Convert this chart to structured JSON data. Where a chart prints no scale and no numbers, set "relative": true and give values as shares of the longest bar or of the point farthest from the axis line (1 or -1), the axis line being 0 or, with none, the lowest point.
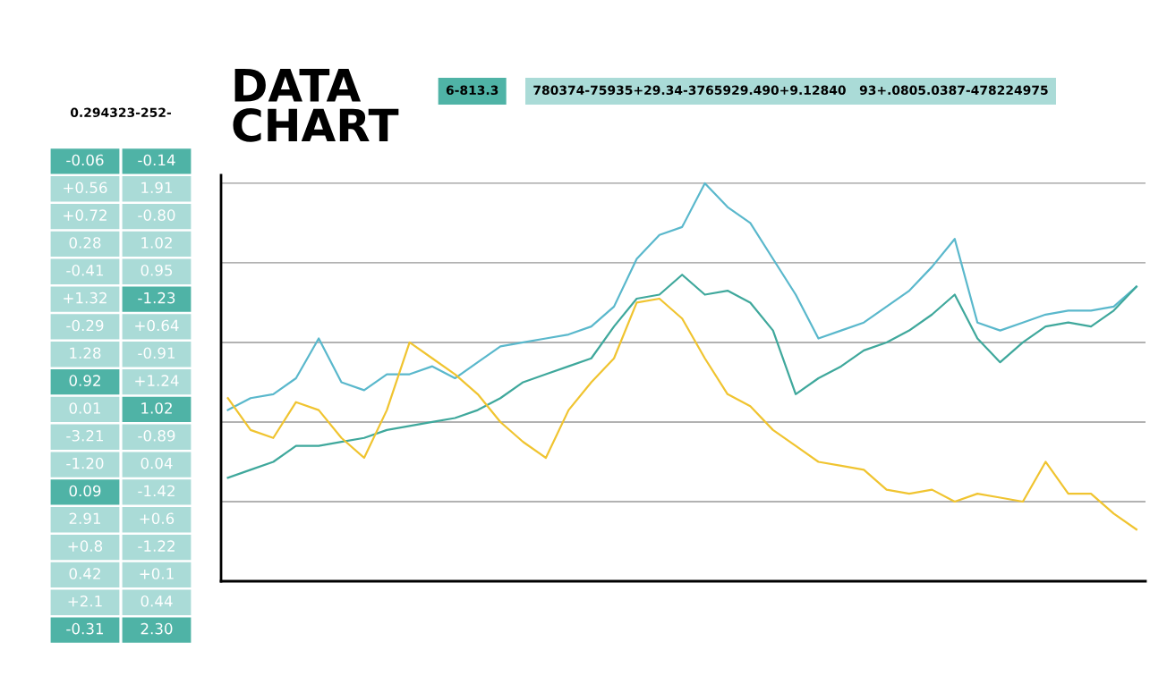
{
  "chart_data": [
    {
      "type": "other",
      "title": "0.294323-252-",
      "annotations": [
        "-0.06",
        "-0.14",
        "+0.56",
        "1.91",
        "+0.72",
        "-0.80",
        "0.28",
        "1.02",
        "-0.41",
        "0.95",
        "+1.32",
        "-1.23",
        "-0.29",
        "+0.64",
        "1.28",
        "-0.91",
        "0.92",
        "+1.24",
        "0.01",
        "1.02",
        "-3.21",
        "-0.89",
        "-1.20",
        "0.04",
        "0.09",
        "-1.42",
        "2.91",
        "+0.6",
        "+0.8",
        "-1.22",
        "0.42",
        "+0.1",
        "+2.1",
        "0.44",
        "-0.31",
        "2.30"
      ],
      "colors": [
        "#4fb3a6",
        "#4fb3a6",
        "#aadbd7",
        "#aadbd7",
        "#aadbd7",
        "#aadbd7",
        "#aadbd7",
        "#aadbd7",
        "#aadbd7",
        "#aadbd7",
        "#aadbd7",
        "#4fb3a6",
        "#aadbd7",
        "#aadbd7",
        "#aadbd7",
        "#aadbd7",
        "#4fb3a6",
        "#aadbd7",
        "#aadbd7",
        "#4fb3a6",
        "#aadbd7",
        "#aadbd7",
        "#aadbd7",
        "#aadbd7",
        "#4fb3a6",
        "#aadbd7",
        "#aadbd7",
        "#aadbd7",
        "#aadbd7",
        "#aadbd7",
        "#aadbd7",
        "#aadbd7",
        "#aadbd7",
        "#aadbd7",
        "#4fb3a6",
        "#4fb3a6"
      ]
    },
    {
      "type": "line",
      "title": "DATA\nCHART",
      "annotations": [
        "6-813.3",
        "780374-75935+29.34-3765929.490+9.12840   93+.0805.0387-478224975"
      ],
      "relative": true,
      "grid": "y",
      "marker": "none",
      "line_style": "solid",
      "categories": [
        null,
        null,
        null,
        null,
        null,
        null,
        null,
        null,
        null,
        null,
        null,
        null,
        null,
        null,
        null,
        null,
        null,
        null,
        null,
        null,
        null,
        null,
        null,
        null,
        null,
        null,
        null,
        null,
        null,
        null,
        null,
        null,
        null,
        null,
        null,
        null,
        null,
        null,
        null,
        null,
        null
      ],
      "series": [
        {
          "color": "#5ab8cc",
          "values": [
            0.43,
            0.46,
            0.47,
            0.51,
            0.61,
            0.5,
            0.48,
            0.52,
            0.52,
            0.54,
            0.51,
            0.55,
            0.59,
            0.6,
            0.61,
            0.62,
            0.64,
            0.69,
            0.81,
            0.87,
            0.89,
            1.0,
            0.94,
            0.9,
            0.81,
            0.72,
            0.61,
            0.63,
            0.65,
            0.69,
            0.73,
            0.79,
            0.86,
            0.65,
            0.63,
            0.65,
            0.67,
            0.68,
            0.68,
            0.69,
            0.74
          ]
        },
        {
          "color": "#3fa89c",
          "values": [
            0.26,
            0.28,
            0.3,
            0.34,
            0.34,
            0.35,
            0.36,
            0.38,
            0.39,
            0.4,
            0.41,
            0.43,
            0.46,
            0.5,
            0.52,
            0.54,
            0.56,
            0.64,
            0.71,
            0.72,
            0.77,
            0.72,
            0.73,
            0.7,
            0.63,
            0.47,
            0.51,
            0.54,
            0.58,
            0.6,
            0.63,
            0.67,
            0.72,
            0.61,
            0.55,
            0.6,
            0.64,
            0.65,
            0.64,
            0.68,
            0.74
          ]
        },
        {
          "color": "#f0c430",
          "values": [
            0.46,
            0.38,
            0.36,
            0.45,
            0.43,
            0.36,
            0.31,
            0.43,
            0.6,
            0.56,
            0.52,
            0.47,
            0.4,
            0.35,
            0.31,
            0.43,
            0.5,
            0.56,
            0.7,
            0.71,
            0.66,
            0.56,
            0.47,
            0.44,
            0.38,
            0.34,
            0.3,
            0.29,
            0.28,
            0.23,
            0.22,
            0.23,
            0.2,
            0.22,
            0.21,
            0.2,
            0.3,
            0.22,
            0.22,
            0.17,
            0.13
          ]
        }
      ]
    }
  ]
}
